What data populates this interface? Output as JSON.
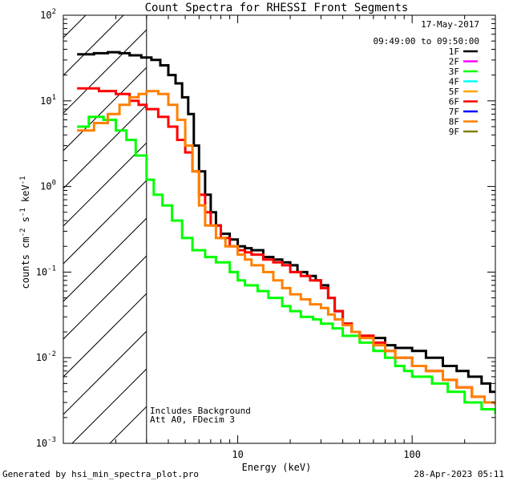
{
  "chart_data": {
    "type": "line",
    "title": "Count Spectra for RHESSI Front Segments",
    "xlabel": "Energy (keV)",
    "ylabel_parts": [
      "counts cm",
      "-2",
      " s",
      "-1",
      " keV",
      "-1"
    ],
    "x_scale": "log",
    "y_scale": "log",
    "xlim": [
      1,
      300
    ],
    "ylim": [
      0.001,
      100
    ],
    "x_tick_labels": [
      {
        "value": 10,
        "label": "10"
      },
      {
        "value": 100,
        "label": "100"
      }
    ],
    "y_tick_labels": [
      {
        "value": 100,
        "base": "10",
        "exp": "2"
      },
      {
        "value": 10,
        "base": "10",
        "exp": "1"
      },
      {
        "value": 1,
        "base": "10",
        "exp": "0"
      },
      {
        "value": 0.1,
        "base": "10",
        "exp": "-1"
      },
      {
        "value": 0.01,
        "base": "10",
        "exp": "-2"
      },
      {
        "value": 0.001,
        "base": "10",
        "exp": "-3"
      }
    ],
    "attenuator_threshold_keV": 3,
    "date_label": "17-May-2017",
    "time_range_label": "09:49:00 to 09:50:00",
    "annotations": [
      "Includes Background",
      "Att A0, FDecim 3"
    ],
    "footer_left": "Generated by hsi_min_spectra_plot.pro",
    "footer_right": "28-Apr-2023 05:11",
    "legend": [
      {
        "name": "1F",
        "color": "#000000"
      },
      {
        "name": "2F",
        "color": "#ff00ff"
      },
      {
        "name": "3F",
        "color": "#00ff00"
      },
      {
        "name": "4F",
        "color": "#00ffff"
      },
      {
        "name": "5F",
        "color": "#ffa500"
      },
      {
        "name": "6F",
        "color": "#ff0000"
      },
      {
        "name": "7F",
        "color": "#0000ff"
      },
      {
        "name": "8F",
        "color": "#ff8000"
      },
      {
        "name": "9F",
        "color": "#808000"
      }
    ],
    "series": [
      {
        "name": "1F",
        "color": "#000000",
        "points": [
          [
            1.2,
            35
          ],
          [
            1.5,
            36
          ],
          [
            1.8,
            37
          ],
          [
            2.1,
            36
          ],
          [
            2.4,
            34
          ],
          [
            2.8,
            32
          ],
          [
            3.2,
            30
          ],
          [
            3.6,
            26
          ],
          [
            4.0,
            20
          ],
          [
            4.4,
            16
          ],
          [
            4.8,
            11
          ],
          [
            5.2,
            7
          ],
          [
            5.6,
            3
          ],
          [
            6.0,
            1.5
          ],
          [
            6.5,
            0.8
          ],
          [
            7.0,
            0.5
          ],
          [
            7.5,
            0.35
          ],
          [
            8.0,
            0.28
          ],
          [
            9.0,
            0.24
          ],
          [
            10,
            0.2
          ],
          [
            11,
            0.19
          ],
          [
            12,
            0.18
          ],
          [
            14,
            0.15
          ],
          [
            16,
            0.14
          ],
          [
            18,
            0.13
          ],
          [
            20,
            0.12
          ],
          [
            22,
            0.1
          ],
          [
            25,
            0.09
          ],
          [
            28,
            0.08
          ],
          [
            30,
            0.07
          ],
          [
            33,
            0.05
          ],
          [
            36,
            0.035
          ],
          [
            40,
            0.025
          ],
          [
            45,
            0.02
          ],
          [
            50,
            0.018
          ],
          [
            60,
            0.017
          ],
          [
            70,
            0.014
          ],
          [
            80,
            0.013
          ],
          [
            100,
            0.012
          ],
          [
            120,
            0.01
          ],
          [
            150,
            0.008
          ],
          [
            180,
            0.007
          ],
          [
            210,
            0.006
          ],
          [
            250,
            0.005
          ],
          [
            280,
            0.004
          ],
          [
            300,
            0.004
          ]
        ]
      },
      {
        "name": "3F",
        "color": "#00ff00",
        "points": [
          [
            1.2,
            5
          ],
          [
            1.4,
            6.5
          ],
          [
            1.7,
            6
          ],
          [
            2.0,
            4.5
          ],
          [
            2.3,
            3.5
          ],
          [
            2.6,
            2.3
          ],
          [
            3.0,
            1.2
          ],
          [
            3.3,
            0.8
          ],
          [
            3.7,
            0.6
          ],
          [
            4.2,
            0.4
          ],
          [
            4.8,
            0.25
          ],
          [
            5.5,
            0.18
          ],
          [
            6.5,
            0.15
          ],
          [
            7.5,
            0.13
          ],
          [
            9,
            0.1
          ],
          [
            10,
            0.08
          ],
          [
            11,
            0.07
          ],
          [
            13,
            0.06
          ],
          [
            15,
            0.05
          ],
          [
            18,
            0.04
          ],
          [
            20,
            0.035
          ],
          [
            23,
            0.03
          ],
          [
            27,
            0.028
          ],
          [
            30,
            0.025
          ],
          [
            35,
            0.022
          ],
          [
            40,
            0.018
          ],
          [
            50,
            0.015
          ],
          [
            60,
            0.012
          ],
          [
            70,
            0.01
          ],
          [
            80,
            0.008
          ],
          [
            90,
            0.007
          ],
          [
            100,
            0.006
          ],
          [
            130,
            0.005
          ],
          [
            160,
            0.004
          ],
          [
            200,
            0.003
          ],
          [
            250,
            0.0025
          ],
          [
            300,
            0.0022
          ]
        ]
      },
      {
        "name": "6F",
        "color": "#ff0000",
        "points": [
          [
            1.2,
            14
          ],
          [
            1.6,
            13
          ],
          [
            2.0,
            12
          ],
          [
            2.4,
            10
          ],
          [
            2.7,
            9
          ],
          [
            3.0,
            8
          ],
          [
            3.5,
            6.5
          ],
          [
            4.0,
            5
          ],
          [
            4.5,
            3.5
          ],
          [
            5.0,
            2.5
          ],
          [
            5.5,
            1.5
          ],
          [
            6.0,
            0.8
          ],
          [
            6.5,
            0.5
          ],
          [
            7.0,
            0.35
          ],
          [
            8,
            0.25
          ],
          [
            9,
            0.2
          ],
          [
            10,
            0.18
          ],
          [
            11,
            0.17
          ],
          [
            12,
            0.16
          ],
          [
            14,
            0.14
          ],
          [
            16,
            0.13
          ],
          [
            18,
            0.12
          ],
          [
            20,
            0.1
          ],
          [
            23,
            0.09
          ],
          [
            26,
            0.08
          ],
          [
            30,
            0.065
          ],
          [
            33,
            0.05
          ],
          [
            36,
            0.035
          ],
          [
            40,
            0.025
          ],
          [
            45,
            0.02
          ],
          [
            50,
            0.018
          ],
          [
            60,
            0.015
          ],
          [
            70,
            0.012
          ],
          [
            80,
            0.01
          ],
          [
            100,
            0.008
          ],
          [
            120,
            0.007
          ],
          [
            150,
            0.0055
          ],
          [
            180,
            0.0045
          ],
          [
            220,
            0.0035
          ],
          [
            260,
            0.003
          ],
          [
            300,
            0.0028
          ]
        ]
      },
      {
        "name": "8F",
        "color": "#ff8000",
        "points": [
          [
            1.2,
            4.5
          ],
          [
            1.5,
            5.5
          ],
          [
            1.8,
            7
          ],
          [
            2.1,
            9
          ],
          [
            2.4,
            11
          ],
          [
            2.7,
            12
          ],
          [
            3.0,
            13
          ],
          [
            3.5,
            12
          ],
          [
            4.0,
            9
          ],
          [
            4.5,
            6
          ],
          [
            5.0,
            3
          ],
          [
            5.5,
            1.5
          ],
          [
            6.0,
            0.6
          ],
          [
            6.5,
            0.35
          ],
          [
            7.5,
            0.25
          ],
          [
            8.5,
            0.2
          ],
          [
            10,
            0.16
          ],
          [
            11,
            0.14
          ],
          [
            12,
            0.12
          ],
          [
            14,
            0.1
          ],
          [
            16,
            0.08
          ],
          [
            18,
            0.065
          ],
          [
            20,
            0.055
          ],
          [
            23,
            0.048
          ],
          [
            26,
            0.042
          ],
          [
            30,
            0.038
          ],
          [
            33,
            0.032
          ],
          [
            36,
            0.028
          ],
          [
            40,
            0.024
          ],
          [
            45,
            0.02
          ],
          [
            50,
            0.017
          ],
          [
            60,
            0.014
          ],
          [
            70,
            0.012
          ],
          [
            80,
            0.01
          ],
          [
            100,
            0.008
          ],
          [
            120,
            0.007
          ],
          [
            150,
            0.0055
          ],
          [
            180,
            0.0045
          ],
          [
            220,
            0.0035
          ],
          [
            260,
            0.003
          ],
          [
            300,
            0.0028
          ]
        ]
      }
    ]
  }
}
